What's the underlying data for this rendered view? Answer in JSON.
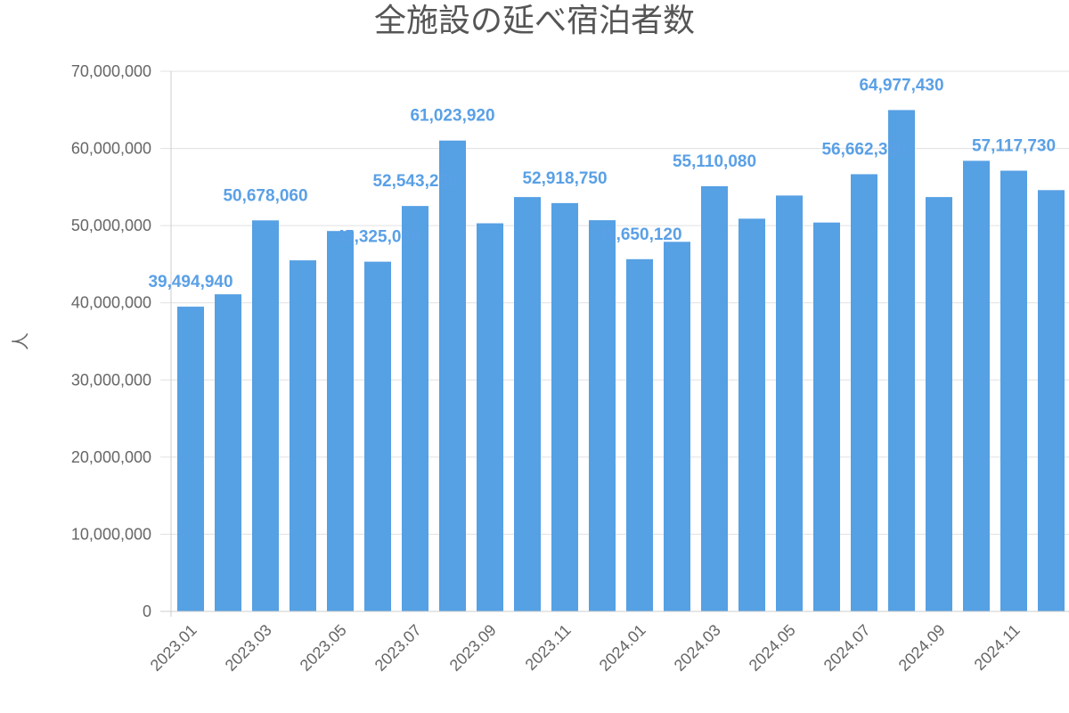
{
  "chart_data": {
    "type": "bar",
    "title": "全施設の延べ宿泊者数",
    "ylabel": "人",
    "xlabel": "",
    "ylim": [
      0,
      70000000
    ],
    "yticks": [
      0,
      10000000,
      20000000,
      30000000,
      40000000,
      50000000,
      60000000,
      70000000
    ],
    "ytick_labels": [
      "0",
      "10,000,000",
      "20,000,000",
      "30,000,000",
      "40,000,000",
      "50,000,000",
      "60,000,000",
      "70,000,000"
    ],
    "grid": true,
    "categories": [
      "2023.01",
      "2023.02",
      "2023.03",
      "2023.04",
      "2023.05",
      "2023.06",
      "2023.07",
      "2023.08",
      "2023.09",
      "2023.10",
      "2023.11",
      "2023.12",
      "2024.01",
      "2024.02",
      "2024.03",
      "2024.04",
      "2024.05",
      "2024.06",
      "2024.07",
      "2024.08",
      "2024.09",
      "2024.10",
      "2024.11",
      "2024.12"
    ],
    "xtick_labels": [
      "2023.01",
      "",
      "2023.03",
      "",
      "2023.05",
      "",
      "2023.07",
      "",
      "2023.09",
      "",
      "2023.11",
      "",
      "2024.01",
      "",
      "2024.03",
      "",
      "2024.05",
      "",
      "2024.07",
      "",
      "2024.09",
      "",
      "2024.11",
      ""
    ],
    "values": [
      39494940,
      41100000,
      50678060,
      45500000,
      49300000,
      45325050,
      52543250,
      61023920,
      50300000,
      53700000,
      52918750,
      50700000,
      45650120,
      47900000,
      55110080,
      50900000,
      53900000,
      50400000,
      56662350,
      64977430,
      53700000,
      58400000,
      57117730,
      54600000
    ],
    "data_labels": [
      {
        "index": 0,
        "text": "39,494,940"
      },
      {
        "index": 2,
        "text": "50,678,060"
      },
      {
        "index": 5,
        "text": "45,325,050"
      },
      {
        "index": 6,
        "text": "52,543,250"
      },
      {
        "index": 7,
        "text": "61,023,920"
      },
      {
        "index": 10,
        "text": "52,918,750"
      },
      {
        "index": 12,
        "text": "45,650,120"
      },
      {
        "index": 14,
        "text": "55,110,080"
      },
      {
        "index": 18,
        "text": "56,662,350"
      },
      {
        "index": 19,
        "text": "64,977,430"
      },
      {
        "index": 22,
        "text": "57,117,730"
      }
    ],
    "colors": {
      "bar": "#56a0e4",
      "label": "#5aa0e6",
      "grid": "#e0e0e0",
      "axis": "#cccccc",
      "text": "#666666"
    }
  }
}
